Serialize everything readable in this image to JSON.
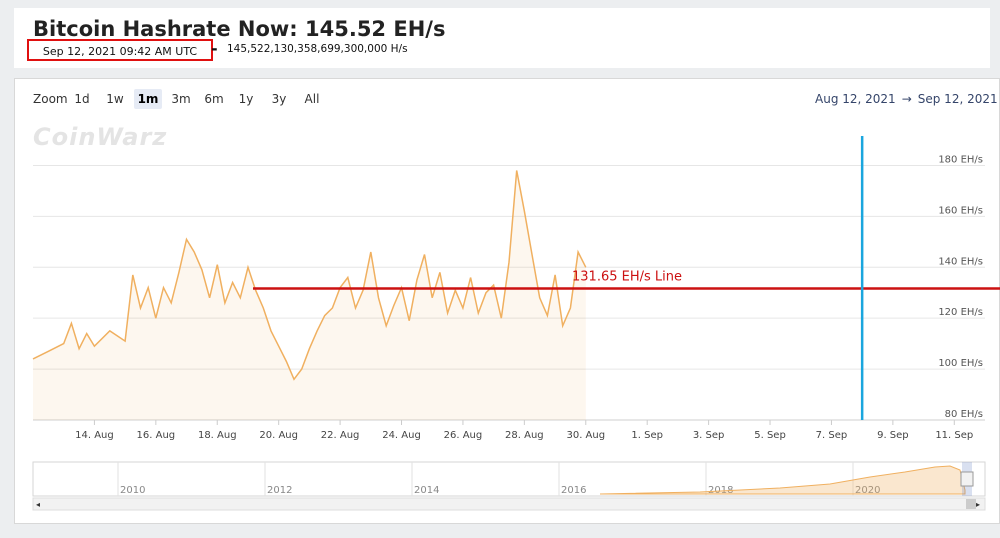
{
  "header": {
    "title": "Bitcoin Hashrate Now: 145.52 EH/s",
    "timestamp": "Sep 12, 2021 09:42 AM UTC",
    "separator": "-",
    "hashrate_hs": "145,522,130,358,699,300,000 H/s"
  },
  "toolbar": {
    "zoom_label": "Zoom",
    "buttons": [
      "1d",
      "1w",
      "1m",
      "3m",
      "6m",
      "1y",
      "3y",
      "All"
    ],
    "selected": "1m",
    "range_from": "Aug 12, 2021",
    "range_arrow": "→",
    "range_to": "Sep 12, 2021"
  },
  "watermark": "CoinWarz",
  "chart_data": {
    "type": "area",
    "series_color": "#f0b060",
    "y_unit": "EH/s",
    "y_ticks": [
      80,
      100,
      120,
      140,
      160,
      180
    ],
    "y_tick_labels": [
      "80 EH/s",
      "100 EH/s",
      "120 EH/s",
      "140 EH/s",
      "160 EH/s",
      "180 EH/s"
    ],
    "ylim": [
      80,
      190
    ],
    "xlim": [
      "2021-08-12",
      "2021-09-12"
    ],
    "x_tick_labels": [
      "14. Aug",
      "16. Aug",
      "18. Aug",
      "20. Aug",
      "22. Aug",
      "24. Aug",
      "26. Aug",
      "28. Aug",
      "30. Aug",
      "1. Sep",
      "3. Sep",
      "5. Sep",
      "7. Sep",
      "9. Sep",
      "11. Sep"
    ],
    "points": [
      [
        "2021-08-12",
        104
      ],
      [
        "2021-08-12T12:00",
        107
      ],
      [
        "2021-08-13",
        110
      ],
      [
        "2021-08-13T06:00",
        118
      ],
      [
        "2021-08-13T12:00",
        108
      ],
      [
        "2021-08-13T18:00",
        114
      ],
      [
        "2021-08-14",
        109
      ],
      [
        "2021-08-14T12:00",
        115
      ],
      [
        "2021-08-15",
        111
      ],
      [
        "2021-08-15T06:00",
        137
      ],
      [
        "2021-08-15T12:00",
        124
      ],
      [
        "2021-08-15T18:00",
        132
      ],
      [
        "2021-08-16",
        120
      ],
      [
        "2021-08-16T06:00",
        132
      ],
      [
        "2021-08-16T12:00",
        126
      ],
      [
        "2021-08-16T18:00",
        138
      ],
      [
        "2021-08-17",
        151
      ],
      [
        "2021-08-17T06:00",
        146
      ],
      [
        "2021-08-17T12:00",
        139
      ],
      [
        "2021-08-17T18:00",
        128
      ],
      [
        "2021-08-18",
        141
      ],
      [
        "2021-08-18T06:00",
        126
      ],
      [
        "2021-08-18T12:00",
        134
      ],
      [
        "2021-08-18T18:00",
        128
      ],
      [
        "2021-08-19",
        140
      ],
      [
        "2021-08-19T06:00",
        131
      ],
      [
        "2021-08-19T12:00",
        124
      ],
      [
        "2021-08-19T18:00",
        115
      ],
      [
        "2021-08-20",
        109
      ],
      [
        "2021-08-20T06:00",
        103
      ],
      [
        "2021-08-20T12:00",
        96
      ],
      [
        "2021-08-20T18:00",
        100
      ],
      [
        "2021-08-21",
        108
      ],
      [
        "2021-08-21T06:00",
        115
      ],
      [
        "2021-08-21T12:00",
        121
      ],
      [
        "2021-08-21T18:00",
        124
      ],
      [
        "2021-08-22",
        132
      ],
      [
        "2021-08-22T06:00",
        136
      ],
      [
        "2021-08-22T12:00",
        124
      ],
      [
        "2021-08-22T18:00",
        131
      ],
      [
        "2021-08-23",
        146
      ],
      [
        "2021-08-23T06:00",
        128
      ],
      [
        "2021-08-23T12:00",
        117
      ],
      [
        "2021-08-23T18:00",
        125
      ],
      [
        "2021-08-24",
        132
      ],
      [
        "2021-08-24T06:00",
        119
      ],
      [
        "2021-08-24T12:00",
        135
      ],
      [
        "2021-08-24T18:00",
        145
      ],
      [
        "2021-08-25",
        128
      ],
      [
        "2021-08-25T06:00",
        138
      ],
      [
        "2021-08-25T12:00",
        122
      ],
      [
        "2021-08-25T18:00",
        131
      ],
      [
        "2021-08-26",
        124
      ],
      [
        "2021-08-26T06:00",
        136
      ],
      [
        "2021-08-26T12:00",
        122
      ],
      [
        "2021-08-26T18:00",
        130
      ],
      [
        "2021-08-27",
        133
      ],
      [
        "2021-08-27T06:00",
        120
      ],
      [
        "2021-08-27T12:00",
        142
      ],
      [
        "2021-08-27T18:00",
        178
      ],
      [
        "2021-08-28",
        162
      ],
      [
        "2021-08-28T06:00",
        145
      ],
      [
        "2021-08-28T12:00",
        128
      ],
      [
        "2021-08-28T18:00",
        121
      ],
      [
        "2021-08-29",
        137
      ],
      [
        "2021-08-29T06:00",
        117
      ],
      [
        "2021-08-29T12:00",
        124
      ],
      [
        "2021-08-29T18:00",
        146
      ],
      [
        "2021-08-30",
        140
      ]
    ],
    "reference_line": {
      "value": 131.65,
      "label": "131.65 EH/s Line",
      "color": "#cc1111"
    },
    "marker_line": {
      "x": "2021-09-08",
      "color": "#1aa6de"
    }
  },
  "navigator": {
    "year_labels": [
      "2010",
      "2012",
      "2014",
      "2016",
      "2018",
      "2020"
    ]
  }
}
